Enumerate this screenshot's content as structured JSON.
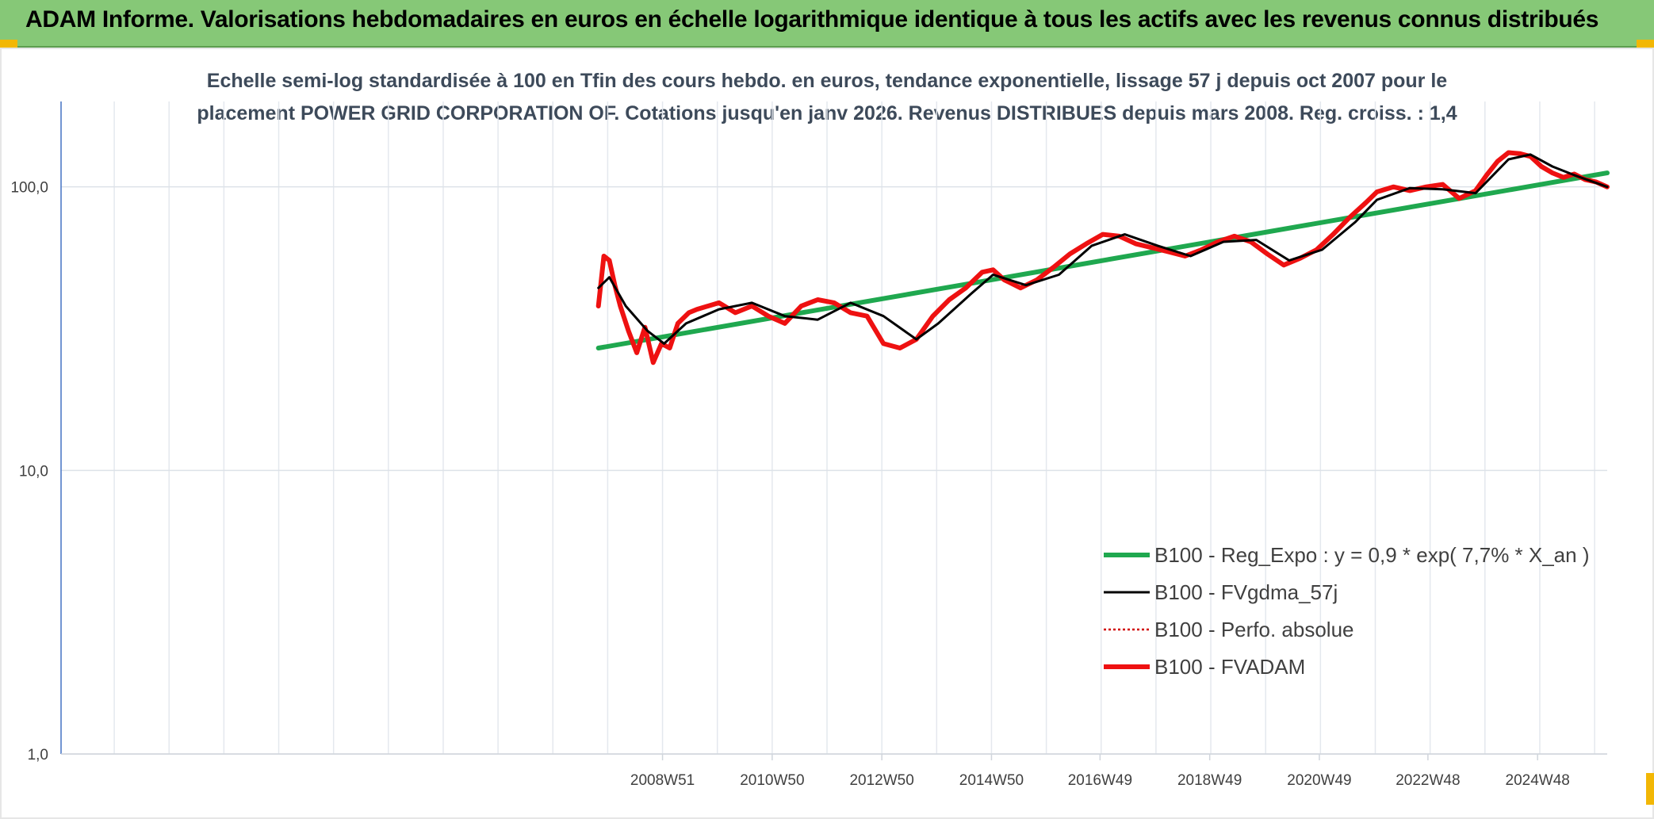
{
  "header": {
    "title": "ADAM Informe. Valorisations hebdomadaires en euros en échelle logarithmique identique à tous les actifs avec les revenus connus distribués"
  },
  "chart_data": {
    "type": "line",
    "title_line1": "Echelle semi-log standardisée à 100 en Tfin des cours hebdo. en euros, tendance exponentielle, lissage 57 j depuis oct 2007 pour le",
    "title_line2": "placement POWER GRID CORPORATION OF. Cotations jusqu'en janv 2026. Revenus DISTRIBUES depuis mars 2008. Reg. croiss. : 1,4",
    "y_scale": "log",
    "ylim": [
      1,
      200
    ],
    "y_ticks": [
      "1,0",
      "10,0",
      "100,0"
    ],
    "y_tick_values": [
      1,
      10,
      100
    ],
    "x_range": [
      1998.0,
      2026.2
    ],
    "x_tick_labels": [
      "2008W51",
      "2010W50",
      "2012W50",
      "2014W50",
      "2016W49",
      "2018W49",
      "2020W49",
      "2022W48",
      "2024W48"
    ],
    "x_tick_years": [
      2008.97,
      2010.97,
      2012.97,
      2014.97,
      2016.95,
      2018.95,
      2020.95,
      2022.93,
      2024.93
    ],
    "gridlines": true,
    "legend_position": "bottom-right",
    "series": [
      {
        "name": "B100 - Reg_Expo : y = 0,9 * exp( 7,7% *  X_an )",
        "color": "#1fa84f",
        "style": "solid-thick",
        "x": [
          2007.8,
          2026.2
        ],
        "values": [
          27,
          112
        ]
      },
      {
        "name": "B100 - FVgdma_57j",
        "color": "#000000",
        "style": "solid",
        "x": [
          2007.8,
          2008.0,
          2008.3,
          2008.7,
          2009.0,
          2009.4,
          2010.0,
          2010.6,
          2011.2,
          2011.8,
          2012.4,
          2013.0,
          2013.6,
          2014.0,
          2014.6,
          2015.0,
          2015.6,
          2016.2,
          2016.8,
          2017.4,
          2018.0,
          2018.6,
          2019.2,
          2019.8,
          2020.4,
          2021.0,
          2021.6,
          2022.0,
          2022.6,
          2023.2,
          2023.8,
          2024.4,
          2024.8,
          2025.2,
          2025.6,
          2026.2
        ],
        "values": [
          44,
          48,
          38,
          31,
          28,
          33,
          37,
          39,
          35,
          34,
          39,
          35,
          29,
          33,
          42,
          49,
          45,
          49,
          62,
          68,
          62,
          57,
          64,
          65,
          55,
          60,
          75,
          90,
          99,
          98,
          95,
          125,
          130,
          118,
          110,
          100
        ]
      },
      {
        "name": "B100 - Perfo. absolue",
        "color": "#d00000",
        "style": "dotted",
        "x": [],
        "values": []
      },
      {
        "name": "B100 - FVADAM",
        "color": "#ee1111",
        "style": "solid-thick",
        "x": [
          2007.8,
          2007.9,
          2008.0,
          2008.1,
          2008.2,
          2008.35,
          2008.5,
          2008.65,
          2008.8,
          2008.95,
          2009.1,
          2009.25,
          2009.45,
          2009.6,
          2009.8,
          2010.0,
          2010.3,
          2010.6,
          2010.9,
          2011.2,
          2011.5,
          2011.8,
          2012.1,
          2012.4,
          2012.7,
          2013.0,
          2013.3,
          2013.6,
          2013.9,
          2014.2,
          2014.5,
          2014.8,
          2015.0,
          2015.2,
          2015.5,
          2015.8,
          2016.1,
          2016.4,
          2016.7,
          2017.0,
          2017.3,
          2017.6,
          2017.9,
          2018.2,
          2018.5,
          2018.8,
          2019.1,
          2019.4,
          2019.7,
          2020.0,
          2020.3,
          2020.6,
          2020.9,
          2021.2,
          2021.5,
          2021.8,
          2022.0,
          2022.3,
          2022.6,
          2022.9,
          2023.2,
          2023.5,
          2023.8,
          2024.0,
          2024.2,
          2024.4,
          2024.6,
          2024.8,
          2025.0,
          2025.2,
          2025.4,
          2025.6,
          2025.8,
          2026.0,
          2026.2
        ],
        "values": [
          38,
          57,
          55,
          45,
          38,
          31,
          26,
          32,
          24,
          28,
          27,
          33,
          36,
          37,
          38,
          39,
          36,
          38,
          35,
          33,
          38,
          40,
          39,
          36,
          35,
          28,
          27,
          29,
          35,
          40,
          44,
          50,
          51,
          47,
          44,
          47,
          52,
          58,
          63,
          68,
          67,
          63,
          61,
          59,
          57,
          60,
          64,
          67,
          64,
          58,
          53,
          56,
          60,
          68,
          78,
          88,
          96,
          100,
          97,
          100,
          102,
          91,
          97,
          110,
          123,
          132,
          131,
          128,
          118,
          112,
          108,
          111,
          106,
          104,
          100
        ]
      }
    ]
  }
}
